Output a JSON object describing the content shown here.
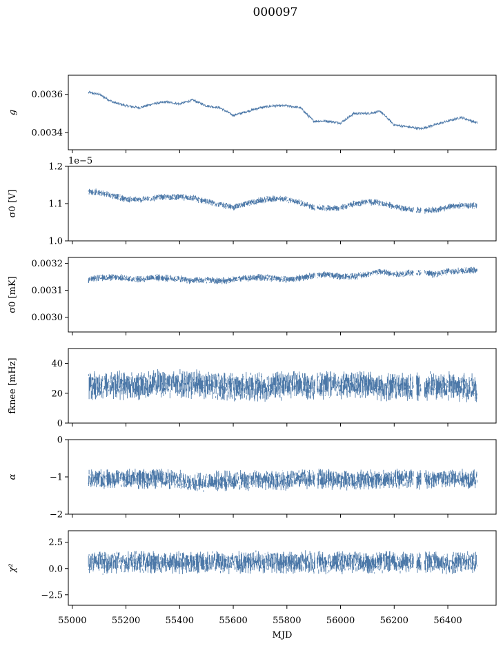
{
  "figure_title": "000097",
  "xlabel": "MJD",
  "x_ticks": [
    "55000",
    "55200",
    "55400",
    "55600",
    "55800",
    "56000",
    "56200",
    "56400"
  ],
  "colors": {
    "series": "#4c78a8",
    "axes": "#000000",
    "background": "#ffffff"
  },
  "chart_data": [
    {
      "type": "line",
      "ylabel": "g",
      "xlim": [
        54985,
        56580
      ],
      "ylim": [
        0.00331,
        0.0037
      ],
      "yticks": [
        0.0034,
        0.0036
      ],
      "ytick_labels": [
        "0.0034",
        "0.0036"
      ],
      "offset_text": "",
      "x": [
        55060,
        55100,
        55150,
        55200,
        55250,
        55300,
        55350,
        55400,
        55450,
        55500,
        55550,
        55600,
        55650,
        55700,
        55750,
        55800,
        55850,
        55900,
        55950,
        56000,
        56050,
        56100,
        56150,
        56200,
        56250,
        56300,
        56350,
        56400,
        56450,
        56510
      ],
      "y": [
        0.00361,
        0.0036,
        0.00356,
        0.00354,
        0.00353,
        0.00355,
        0.00356,
        0.00355,
        0.00357,
        0.00354,
        0.00353,
        0.00349,
        0.00351,
        0.00353,
        0.00354,
        0.00354,
        0.00353,
        0.00346,
        0.00346,
        0.00345,
        0.0035,
        0.0035,
        0.00351,
        0.00344,
        0.00343,
        0.00342,
        0.00344,
        0.00346,
        0.00348,
        0.00345
      ]
    },
    {
      "type": "line",
      "ylabel": "σ0 [V]",
      "xlim": [
        54985,
        56580
      ],
      "ylim": [
        1.0,
        1.2
      ],
      "yticks": [
        1.0,
        1.1,
        1.2
      ],
      "ytick_labels": [
        "1.0",
        "1.1",
        "1.2"
      ],
      "offset_text": "1e−5",
      "x": [
        55060,
        55100,
        55150,
        55200,
        55250,
        55300,
        55350,
        55400,
        55450,
        55500,
        55550,
        55600,
        55650,
        55700,
        55750,
        55800,
        55850,
        55900,
        55950,
        56000,
        56050,
        56100,
        56150,
        56200,
        56250,
        56300,
        56350,
        56400,
        56450,
        56510
      ],
      "y": [
        1.133,
        1.13,
        1.122,
        1.112,
        1.11,
        1.115,
        1.118,
        1.118,
        1.115,
        1.105,
        1.098,
        1.09,
        1.1,
        1.108,
        1.113,
        1.112,
        1.102,
        1.09,
        1.088,
        1.088,
        1.1,
        1.105,
        1.102,
        1.092,
        1.085,
        1.082,
        1.082,
        1.09,
        1.095,
        1.095
      ],
      "spread": 0.008
    },
    {
      "type": "line",
      "ylabel": "σ0 [mK]",
      "xlim": [
        54985,
        56580
      ],
      "ylim": [
        0.002945,
        0.003222
      ],
      "yticks": [
        0.003,
        0.0031,
        0.0032
      ],
      "ytick_labels": [
        "0.0030",
        "0.0031",
        "0.0032"
      ],
      "offset_text": "",
      "x": [
        55060,
        55100,
        55150,
        55200,
        55250,
        55300,
        55350,
        55400,
        55450,
        55500,
        55550,
        55600,
        55650,
        55700,
        55750,
        55800,
        55850,
        55900,
        55950,
        56000,
        56050,
        56100,
        56150,
        56200,
        56250,
        56300,
        56350,
        56400,
        56450,
        56510
      ],
      "y": [
        0.00314,
        0.003145,
        0.003148,
        0.003145,
        0.00314,
        0.003148,
        0.003145,
        0.003142,
        0.003135,
        0.003138,
        0.003135,
        0.00314,
        0.003145,
        0.003148,
        0.003145,
        0.00314,
        0.003145,
        0.003155,
        0.00316,
        0.00315,
        0.003152,
        0.00316,
        0.00317,
        0.003158,
        0.003165,
        0.003165,
        0.00316,
        0.00317,
        0.003172,
        0.003175
      ],
      "spread": 1.2e-05
    },
    {
      "type": "line",
      "ylabel": "fknee [mHz]",
      "xlim": [
        54985,
        56580
      ],
      "ylim": [
        0,
        50
      ],
      "yticks": [
        0,
        20,
        40
      ],
      "ytick_labels": [
        "0",
        "20",
        "40"
      ],
      "offset_text": "",
      "x": [
        55060,
        55150,
        55250,
        55350,
        55450,
        55550,
        55650,
        55750,
        55850,
        55950,
        56050,
        56150,
        56250,
        56350,
        56450,
        56510
      ],
      "y": [
        25,
        26,
        25,
        27,
        26,
        25,
        24,
        25,
        26,
        25,
        26,
        25,
        24,
        25,
        24,
        24
      ],
      "spread": 9
    },
    {
      "type": "line",
      "ylabel": "α",
      "xlim": [
        54985,
        56580
      ],
      "ylim": [
        -2,
        0
      ],
      "yticks": [
        -2,
        -1,
        0
      ],
      "ytick_labels": [
        "−2",
        "−1",
        "0"
      ],
      "offset_text": "",
      "x": [
        55060,
        55150,
        55250,
        55350,
        55450,
        55550,
        55650,
        55750,
        55850,
        55950,
        56050,
        56150,
        56250,
        56350,
        56450,
        56510
      ],
      "y": [
        -1.05,
        -1.05,
        -1.05,
        -1.05,
        -1.15,
        -1.1,
        -1.1,
        -1.1,
        -1.05,
        -1.05,
        -1.1,
        -1.05,
        -1.05,
        -1.05,
        -1.05,
        -1.05
      ],
      "spread": 0.25
    },
    {
      "type": "line",
      "ylabel": "χ²",
      "xlim": [
        54985,
        56580
      ],
      "ylim": [
        -3.5,
        3.6
      ],
      "yticks": [
        -2.5,
        0.0,
        2.5
      ],
      "ytick_labels": [
        "−2.5",
        "0.0",
        "2.5"
      ],
      "offset_text": "",
      "x": [
        55060,
        55150,
        55250,
        55350,
        55450,
        55550,
        55650,
        55750,
        55850,
        55950,
        56050,
        56150,
        56250,
        56350,
        56450,
        56510
      ],
      "y": [
        0.6,
        0.6,
        0.6,
        0.6,
        0.6,
        0.6,
        0.6,
        0.6,
        0.6,
        0.6,
        0.6,
        0.6,
        0.6,
        0.6,
        0.6,
        0.6
      ],
      "spread": 1.0
    }
  ]
}
